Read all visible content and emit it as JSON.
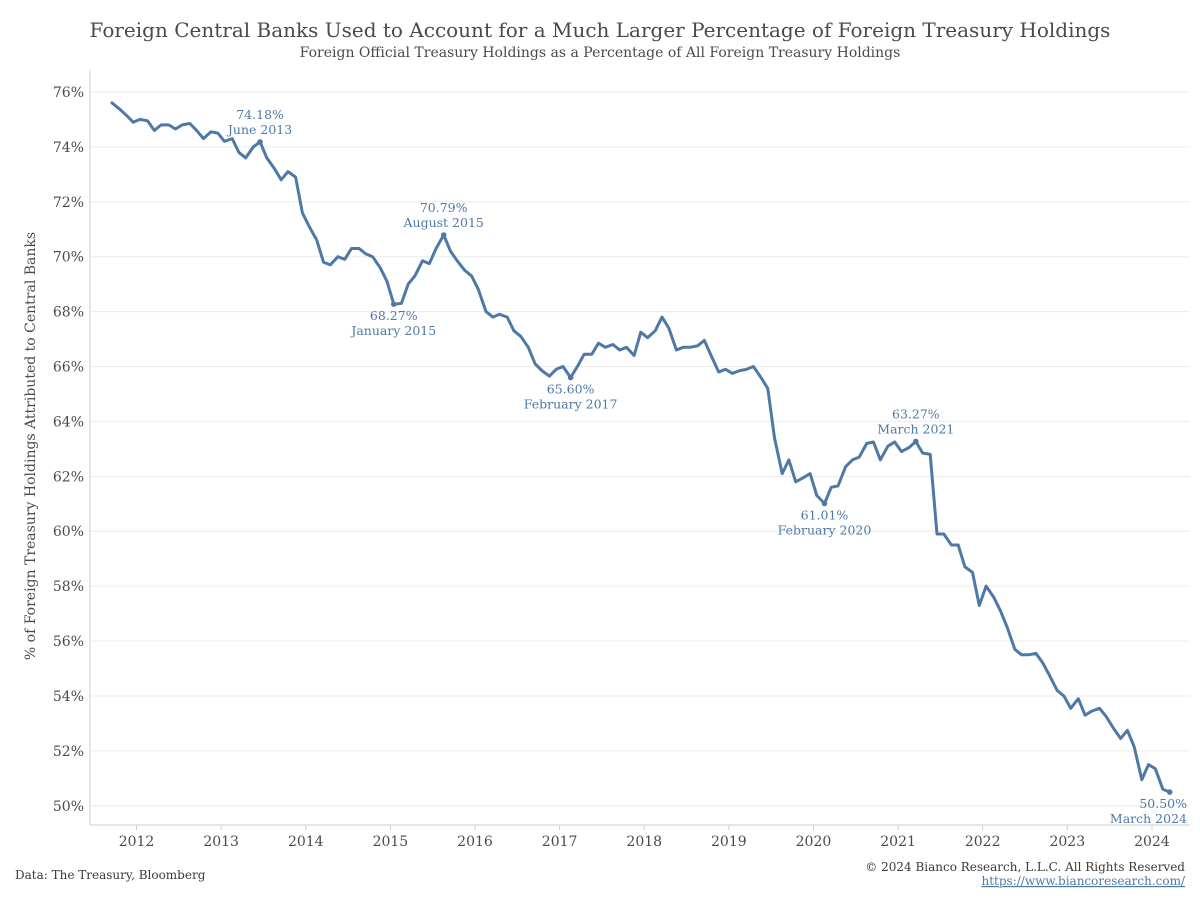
{
  "chart_data": {
    "type": "line",
    "title": "Foreign Central Banks Used to Account for a Much Larger Percentage of Foreign Treasury Holdings",
    "subtitle": "Foreign Official Treasury Holdings as a Percentage of All Foreign Treasury Holdings",
    "ylabel": "% of Foreign Treasury Holdings Attributed to Central Banks",
    "xlabel": "",
    "ylim": [
      49.3,
      76.8
    ],
    "y_ticks": [
      50,
      52,
      54,
      56,
      58,
      60,
      62,
      64,
      66,
      68,
      70,
      72,
      74,
      76
    ],
    "y_tick_labels": [
      "50%",
      "52%",
      "54%",
      "56%",
      "58%",
      "60%",
      "62%",
      "64%",
      "66%",
      "68%",
      "70%",
      "72%",
      "74%",
      "76%"
    ],
    "x_ticks": [
      2012,
      2013,
      2014,
      2015,
      2016,
      2017,
      2018,
      2019,
      2020,
      2021,
      2022,
      2023,
      2024
    ],
    "x_tick_labels": [
      "2012",
      "2013",
      "2014",
      "2015",
      "2016",
      "2017",
      "2018",
      "2019",
      "2020",
      "2021",
      "2022",
      "2023",
      "2024"
    ],
    "grid": true,
    "line_color": "#4e79a7",
    "series": [
      {
        "x": [
          2011.71,
          2011.79,
          2011.88,
          2011.96,
          2012.04,
          2012.13,
          2012.21,
          2012.29,
          2012.38,
          2012.46,
          2012.54,
          2012.63,
          2012.71,
          2012.79,
          2012.88,
          2012.96,
          2013.04,
          2013.13,
          2013.21,
          2013.29,
          2013.38,
          2013.46,
          2013.54,
          2013.63,
          2013.71,
          2013.79,
          2013.88,
          2013.96,
          2014.04,
          2014.13,
          2014.21,
          2014.29,
          2014.38,
          2014.46,
          2014.54,
          2014.63,
          2014.71,
          2014.79,
          2014.88,
          2014.96,
          2015.04,
          2015.13,
          2015.21,
          2015.29,
          2015.38,
          2015.46,
          2015.54,
          2015.63,
          2015.71,
          2015.79,
          2015.88,
          2015.96,
          2016.04,
          2016.13,
          2016.21,
          2016.29,
          2016.38,
          2016.46,
          2016.54,
          2016.63,
          2016.71,
          2016.79,
          2016.88,
          2016.96,
          2017.04,
          2017.13,
          2017.21,
          2017.29,
          2017.38,
          2017.46,
          2017.54,
          2017.63,
          2017.71,
          2017.79,
          2017.88,
          2017.96,
          2018.04,
          2018.13,
          2018.21,
          2018.29,
          2018.38,
          2018.46,
          2018.54,
          2018.63,
          2018.71,
          2018.79,
          2018.88,
          2018.96,
          2019.04,
          2019.13,
          2019.21,
          2019.29,
          2019.38,
          2019.46,
          2019.54,
          2019.63,
          2019.71,
          2019.79,
          2019.88,
          2019.96,
          2020.04,
          2020.13,
          2020.21,
          2020.29,
          2020.38,
          2020.46,
          2020.54,
          2020.63,
          2020.71,
          2020.79,
          2020.88,
          2020.96,
          2021.04,
          2021.13,
          2021.21,
          2021.29,
          2021.38,
          2021.46,
          2021.54,
          2021.63,
          2021.71,
          2021.79,
          2021.88,
          2021.96,
          2022.04,
          2022.13,
          2022.21,
          2022.29,
          2022.38,
          2022.46,
          2022.54,
          2022.63,
          2022.71,
          2022.79,
          2022.88,
          2022.96,
          2023.04,
          2023.13,
          2023.21,
          2023.29,
          2023.38,
          2023.46,
          2023.54,
          2023.63,
          2023.71,
          2023.79,
          2023.88,
          2023.96,
          2024.04,
          2024.13,
          2024.21
        ],
        "values": [
          75.6,
          75.4,
          75.15,
          74.9,
          75.0,
          74.95,
          74.6,
          74.8,
          74.8,
          74.65,
          74.8,
          74.85,
          74.6,
          74.3,
          74.55,
          74.5,
          74.2,
          74.3,
          73.8,
          73.6,
          74.0,
          74.18,
          73.6,
          73.2,
          72.8,
          73.1,
          72.9,
          71.6,
          71.1,
          70.6,
          69.8,
          69.7,
          70.0,
          69.9,
          70.3,
          70.3,
          70.1,
          70.0,
          69.6,
          69.1,
          68.27,
          68.3,
          69.0,
          69.3,
          69.85,
          69.75,
          70.3,
          70.79,
          70.2,
          69.85,
          69.5,
          69.3,
          68.8,
          68.0,
          67.8,
          67.9,
          67.8,
          67.3,
          67.1,
          66.7,
          66.1,
          65.85,
          65.65,
          65.9,
          66.0,
          65.6,
          66.0,
          66.45,
          66.45,
          66.85,
          66.7,
          66.8,
          66.6,
          66.7,
          66.4,
          67.25,
          67.05,
          67.3,
          67.8,
          67.4,
          66.6,
          66.7,
          66.7,
          66.75,
          66.95,
          66.4,
          65.8,
          65.9,
          65.75,
          65.85,
          65.9,
          66.0,
          65.6,
          65.2,
          63.4,
          62.1,
          62.6,
          61.8,
          61.95,
          62.1,
          61.3,
          61.01,
          61.6,
          61.65,
          62.35,
          62.6,
          62.7,
          63.2,
          63.25,
          62.6,
          63.1,
          63.25,
          62.9,
          63.05,
          63.27,
          62.85,
          62.8,
          59.9,
          59.9,
          59.5,
          59.5,
          58.7,
          58.5,
          57.3,
          58.0,
          57.6,
          57.1,
          56.5,
          55.7,
          55.5,
          55.5,
          55.55,
          55.2,
          54.75,
          54.2,
          54.0,
          53.55,
          53.9,
          53.3,
          53.45,
          53.55,
          53.25,
          52.85,
          52.45,
          52.75,
          52.15,
          50.95,
          51.5,
          51.35,
          50.6,
          50.5
        ]
      }
    ],
    "annotations": [
      {
        "x": 2013.46,
        "y": 74.18,
        "value": "74.18%",
        "label": "June 2013",
        "position": "above"
      },
      {
        "x": 2015.04,
        "y": 68.27,
        "value": "68.27%",
        "label": "January 2015",
        "position": "below"
      },
      {
        "x": 2015.63,
        "y": 70.79,
        "value": "70.79%",
        "label": "August 2015",
        "position": "above"
      },
      {
        "x": 2017.13,
        "y": 65.6,
        "value": "65.60%",
        "label": "February 2017",
        "position": "below"
      },
      {
        "x": 2020.13,
        "y": 61.01,
        "value": "61.01%",
        "label": "February 2020",
        "position": "below"
      },
      {
        "x": 2021.21,
        "y": 63.27,
        "value": "63.27%",
        "label": "March 2021",
        "position": "above"
      },
      {
        "x": 2024.21,
        "y": 50.5,
        "value": "50.50%",
        "label": "March 2024",
        "position": "below-right"
      }
    ]
  },
  "footer": {
    "source": "Data: The Treasury, Bloomberg",
    "copyright": "© 2024 Bianco Research, L.L.C. All Rights Reserved",
    "url": "https://www.biancoresearch.com/"
  }
}
